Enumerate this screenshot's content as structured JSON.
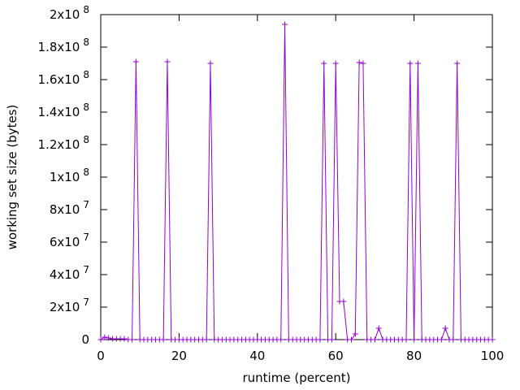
{
  "chart_data": {
    "type": "line",
    "title": "",
    "xlabel": "runtime (percent)",
    "ylabel": "working set size (bytes)",
    "xlim": [
      0,
      100
    ],
    "ylim": [
      0,
      200000000
    ],
    "x_ticks": [
      {
        "value": 0,
        "label": "0"
      },
      {
        "value": 20,
        "label": "20"
      },
      {
        "value": 40,
        "label": "40"
      },
      {
        "value": 60,
        "label": "60"
      },
      {
        "value": 80,
        "label": "80"
      },
      {
        "value": 100,
        "label": "100"
      }
    ],
    "y_ticks": [
      {
        "value": 0,
        "mant": "0",
        "exp": ""
      },
      {
        "value": 20000000,
        "mant": "2x10",
        "exp": "7"
      },
      {
        "value": 40000000,
        "mant": "4x10",
        "exp": "7"
      },
      {
        "value": 60000000,
        "mant": "6x10",
        "exp": "7"
      },
      {
        "value": 80000000,
        "mant": "8x10",
        "exp": "7"
      },
      {
        "value": 100000000,
        "mant": "1x10",
        "exp": "8"
      },
      {
        "value": 120000000,
        "mant": "1.2x10",
        "exp": "8"
      },
      {
        "value": 140000000,
        "mant": "1.4x10",
        "exp": "8"
      },
      {
        "value": 160000000,
        "mant": "1.6x10",
        "exp": "8"
      },
      {
        "value": 180000000,
        "mant": "1.8x10",
        "exp": "8"
      },
      {
        "value": 200000000,
        "mant": "2x10",
        "exp": "8"
      }
    ],
    "grid": false,
    "marker": "plus",
    "series": [
      {
        "color": "#9400d3",
        "x": [
          0,
          1,
          2,
          3,
          4,
          5,
          6,
          7,
          8,
          9,
          10,
          11,
          12,
          13,
          14,
          15,
          16,
          17,
          18,
          19,
          20,
          21,
          22,
          23,
          24,
          25,
          26,
          27,
          28,
          29,
          30,
          31,
          32,
          33,
          34,
          35,
          36,
          37,
          38,
          39,
          40,
          41,
          42,
          43,
          44,
          45,
          46,
          47,
          48,
          49,
          50,
          51,
          52,
          53,
          54,
          55,
          56,
          57,
          58,
          59,
          60,
          61,
          62,
          63,
          64,
          65,
          66,
          67,
          68,
          69,
          70,
          71,
          72,
          73,
          74,
          75,
          76,
          77,
          78,
          79,
          80,
          81,
          82,
          83,
          84,
          85,
          86,
          87,
          88,
          89,
          90,
          91,
          92,
          93,
          94,
          95,
          96,
          97,
          98,
          99,
          100
        ],
        "y": [
          0,
          1500000,
          1000000,
          500000,
          500000,
          500000,
          500000,
          0,
          0,
          171000000,
          0,
          0,
          0,
          0,
          0,
          0,
          0,
          171000000,
          0,
          0,
          0,
          0,
          0,
          0,
          0,
          0,
          0,
          0,
          170000000,
          0,
          0,
          0,
          0,
          0,
          0,
          0,
          0,
          0,
          0,
          0,
          0,
          0,
          0,
          0,
          0,
          0,
          0,
          194000000,
          0,
          0,
          0,
          0,
          0,
          0,
          0,
          0,
          0,
          170000000,
          0,
          0,
          170000000,
          23500000,
          23500000,
          0,
          0,
          3500000,
          170500000,
          170000000,
          0,
          0,
          0,
          7000000,
          0,
          0,
          0,
          0,
          0,
          0,
          0,
          170000000,
          0,
          170000000,
          0,
          0,
          0,
          0,
          0,
          0,
          7000000,
          0,
          0,
          170000000,
          0,
          0,
          0,
          0,
          0,
          0,
          0,
          0,
          0
        ]
      }
    ]
  }
}
